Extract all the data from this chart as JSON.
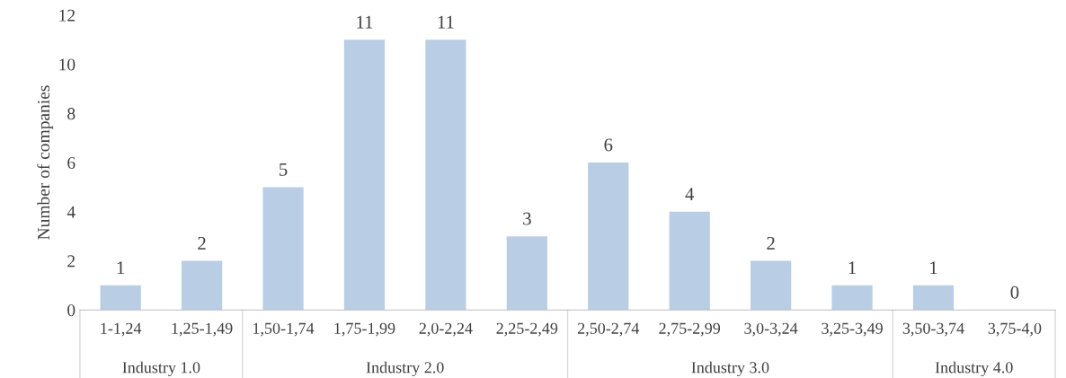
{
  "chart_data": {
    "type": "bar",
    "ylabel": "Number of companies",
    "categories": [
      "1-1,24",
      "1,25-1,49",
      "1,50-1,74",
      "1,75-1,99",
      "2,0-2,24",
      "2,25-2,49",
      "2,50-2,74",
      "2,75-2,99",
      "3,0-3,24",
      "3,25-3,49",
      "3,50-3,74",
      "3,75-4,0"
    ],
    "values": [
      1,
      2,
      5,
      11,
      11,
      3,
      6,
      4,
      2,
      1,
      1,
      0
    ],
    "color": "#b9cde5",
    "ylim": [
      0,
      12
    ],
    "yticks": [
      0,
      2,
      4,
      6,
      8,
      10,
      12
    ],
    "data_labels": true,
    "grid": false,
    "legend": false,
    "annotations": [
      "Industry 1.0",
      "Industry 2.0",
      "Industry 3.0",
      "Industry 4.0"
    ]
  }
}
